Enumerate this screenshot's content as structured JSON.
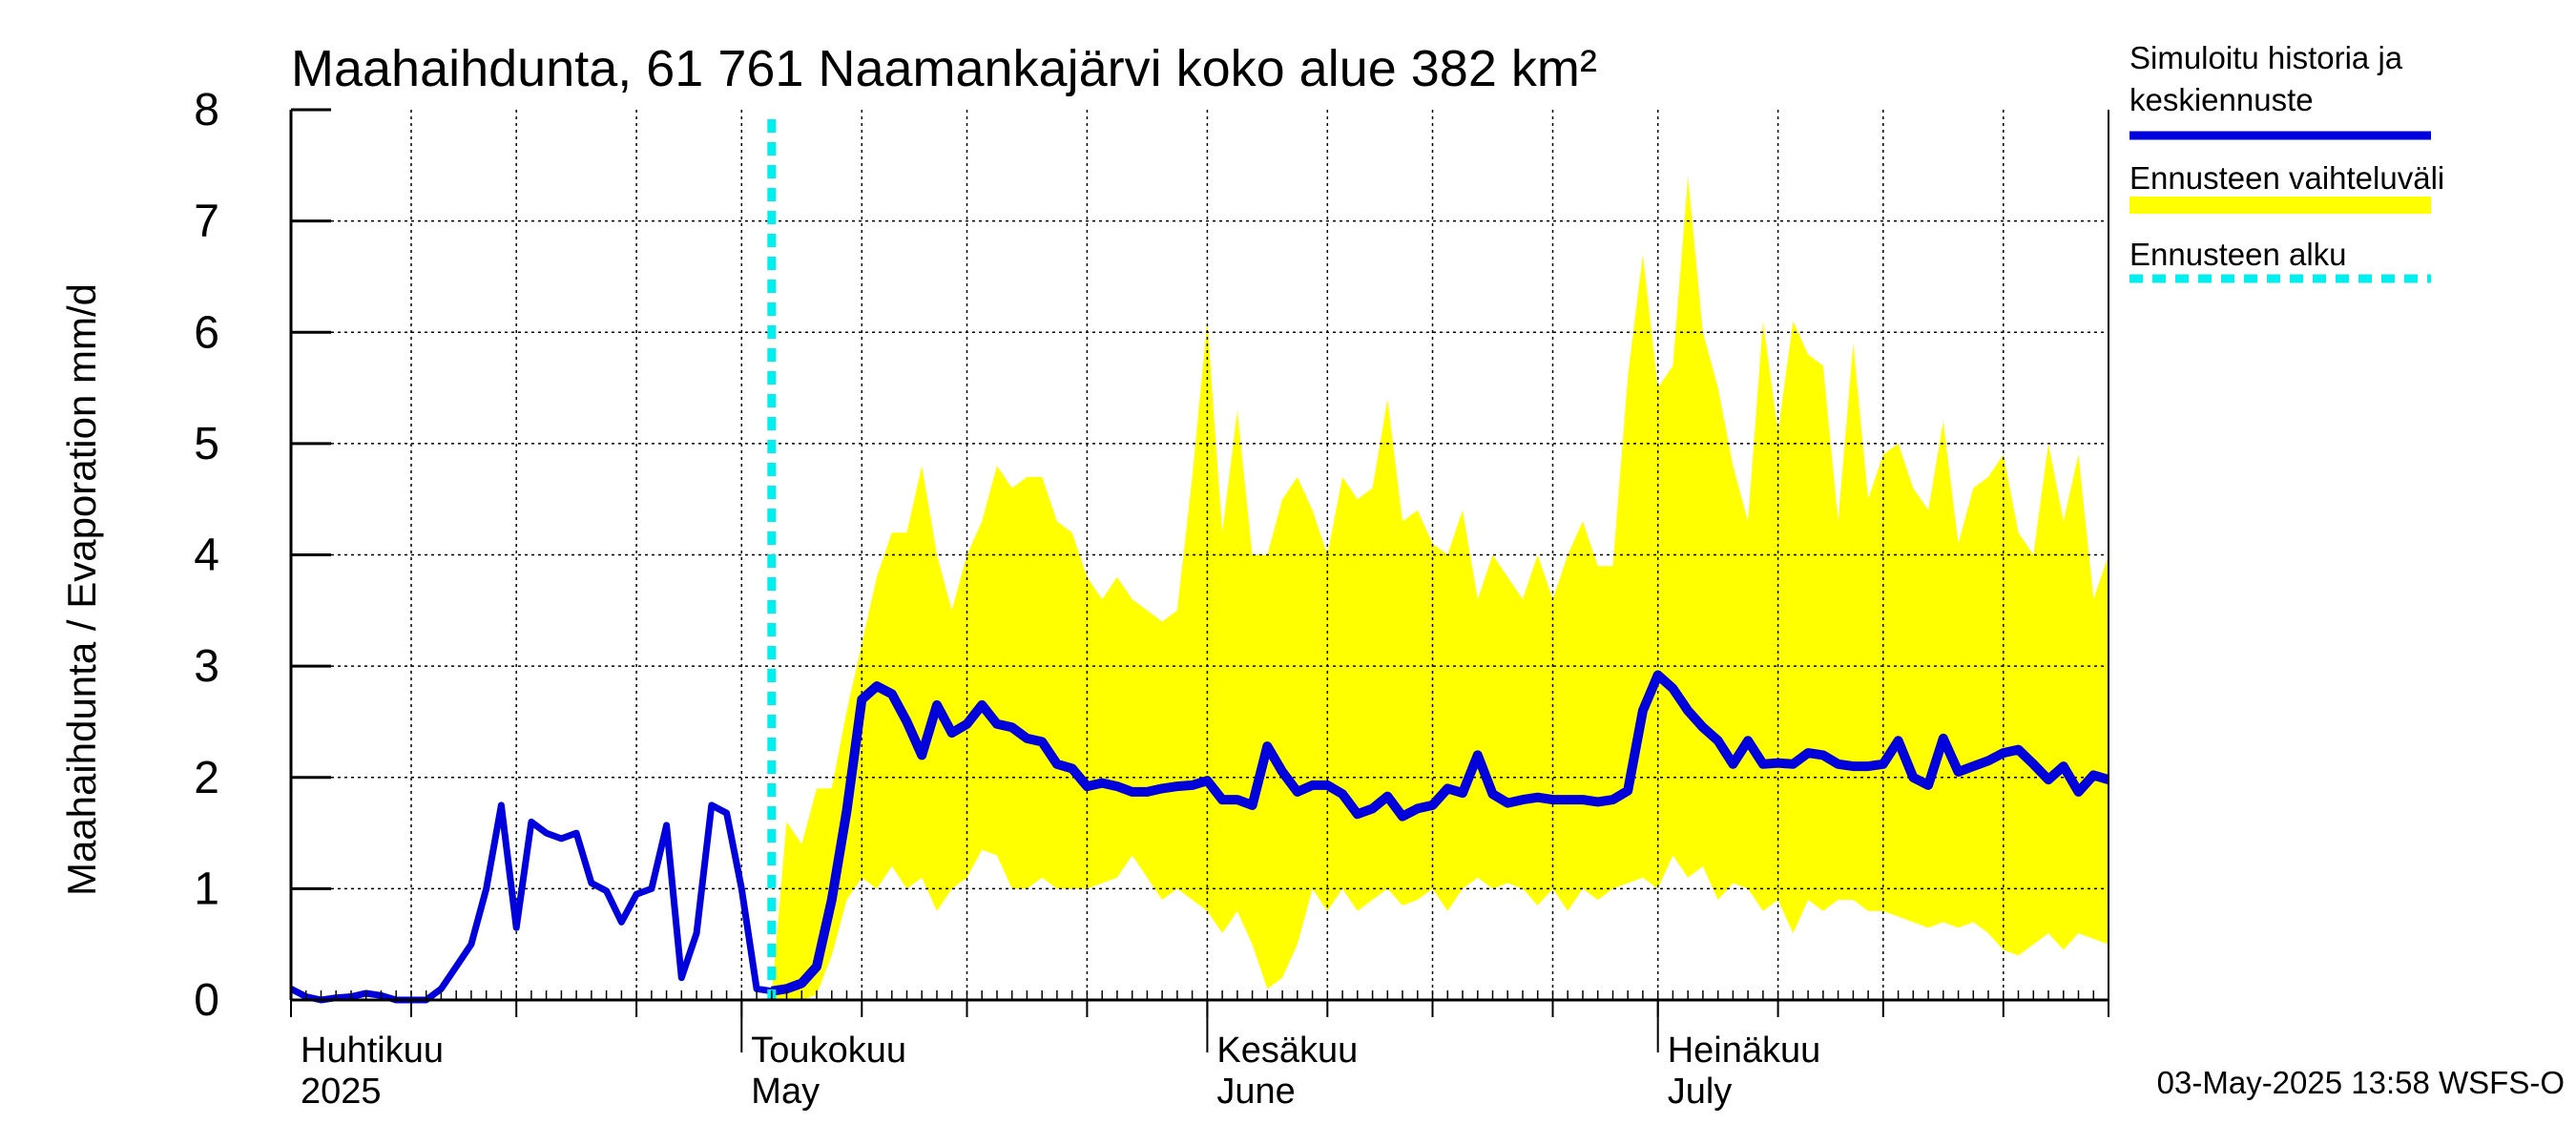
{
  "chart_data": {
    "type": "area",
    "title": "Maahaihdunta, 61 761 Naamankajärvi koko alue 382 km²",
    "ylabel": "Maahaihdunta / Evaporation   mm/d",
    "xlabel": "",
    "ylim": [
      0,
      8
    ],
    "yticks": [
      "0",
      "1",
      "2",
      "3",
      "4",
      "5",
      "6",
      "7",
      "8"
    ],
    "x_range": [
      "2025-04-01",
      "2025-07-31"
    ],
    "grid": true,
    "legend_position": "right",
    "month_labels": [
      {
        "date": "2025-04-01",
        "fi": "Huhtikuu",
        "en": "2025"
      },
      {
        "date": "2025-05-01",
        "fi": "Toukokuu",
        "en": "May"
      },
      {
        "date": "2025-06-01",
        "fi": "Kesäkuu",
        "en": "June"
      },
      {
        "date": "2025-07-01",
        "fi": "Heinäkuu",
        "en": "July"
      }
    ],
    "forecast_start": "2025-05-03",
    "history_series": {
      "name": "Simuloitu historia ja keskiennuste",
      "color": "#0000dd",
      "points": [
        [
          "2025-04-01",
          0.1
        ],
        [
          "2025-04-02",
          0.03
        ],
        [
          "2025-04-03",
          0.0
        ],
        [
          "2025-04-04",
          0.02
        ],
        [
          "2025-04-05",
          0.03
        ],
        [
          "2025-04-06",
          0.06
        ],
        [
          "2025-04-07",
          0.04
        ],
        [
          "2025-04-08",
          0.0
        ],
        [
          "2025-04-09",
          0.0
        ],
        [
          "2025-04-10",
          0.0
        ],
        [
          "2025-04-11",
          0.1
        ],
        [
          "2025-04-12",
          0.3
        ],
        [
          "2025-04-13",
          0.5
        ],
        [
          "2025-04-14",
          1.0
        ],
        [
          "2025-04-15",
          1.75
        ],
        [
          "2025-04-16",
          0.65
        ],
        [
          "2025-04-17",
          1.6
        ],
        [
          "2025-04-18",
          1.5
        ],
        [
          "2025-04-19",
          1.45
        ],
        [
          "2025-04-20",
          1.5
        ],
        [
          "2025-04-21",
          1.05
        ],
        [
          "2025-04-22",
          0.98
        ],
        [
          "2025-04-23",
          0.7
        ],
        [
          "2025-04-24",
          0.95
        ],
        [
          "2025-04-25",
          1.0
        ],
        [
          "2025-04-26",
          1.57
        ],
        [
          "2025-04-27",
          0.2
        ],
        [
          "2025-04-28",
          0.6
        ],
        [
          "2025-04-29",
          1.75
        ],
        [
          "2025-04-30",
          1.68
        ],
        [
          "2025-05-01",
          1.0
        ],
        [
          "2025-05-02",
          0.1
        ],
        [
          "2025-05-03",
          0.08
        ]
      ]
    },
    "forecast_series": {
      "name": "Simuloitu historia ja keskiennuste",
      "points": [
        [
          "2025-05-03",
          0.08
        ],
        [
          "2025-05-04",
          0.1
        ],
        [
          "2025-05-05",
          0.15
        ],
        [
          "2025-05-06",
          0.3
        ],
        [
          "2025-05-07",
          0.9
        ],
        [
          "2025-05-08",
          1.7
        ],
        [
          "2025-05-09",
          2.7
        ],
        [
          "2025-05-10",
          2.82
        ],
        [
          "2025-05-11",
          2.75
        ],
        [
          "2025-05-12",
          2.5
        ],
        [
          "2025-05-13",
          2.2
        ],
        [
          "2025-05-14",
          2.65
        ],
        [
          "2025-05-15",
          2.4
        ],
        [
          "2025-05-16",
          2.48
        ],
        [
          "2025-05-17",
          2.65
        ],
        [
          "2025-05-18",
          2.48
        ],
        [
          "2025-05-19",
          2.45
        ],
        [
          "2025-05-20",
          2.35
        ],
        [
          "2025-05-21",
          2.32
        ],
        [
          "2025-05-22",
          2.12
        ],
        [
          "2025-05-23",
          2.08
        ],
        [
          "2025-05-24",
          1.92
        ],
        [
          "2025-05-25",
          1.95
        ],
        [
          "2025-05-26",
          1.92
        ],
        [
          "2025-05-27",
          1.87
        ],
        [
          "2025-05-28",
          1.87
        ],
        [
          "2025-05-29",
          1.9
        ],
        [
          "2025-05-30",
          1.92
        ],
        [
          "2025-05-31",
          1.93
        ],
        [
          "2025-06-01",
          1.97
        ],
        [
          "2025-06-02",
          1.8
        ],
        [
          "2025-06-03",
          1.8
        ],
        [
          "2025-06-04",
          1.75
        ],
        [
          "2025-06-05",
          2.28
        ],
        [
          "2025-06-06",
          2.05
        ],
        [
          "2025-06-07",
          1.87
        ],
        [
          "2025-06-08",
          1.93
        ],
        [
          "2025-06-09",
          1.93
        ],
        [
          "2025-06-10",
          1.85
        ],
        [
          "2025-06-11",
          1.67
        ],
        [
          "2025-06-12",
          1.72
        ],
        [
          "2025-06-13",
          1.83
        ],
        [
          "2025-06-14",
          1.65
        ],
        [
          "2025-06-15",
          1.72
        ],
        [
          "2025-06-16",
          1.75
        ],
        [
          "2025-06-17",
          1.9
        ],
        [
          "2025-06-18",
          1.86
        ],
        [
          "2025-06-19",
          2.2
        ],
        [
          "2025-06-20",
          1.85
        ],
        [
          "2025-06-21",
          1.77
        ],
        [
          "2025-06-22",
          1.8
        ],
        [
          "2025-06-23",
          1.82
        ],
        [
          "2025-06-24",
          1.8
        ],
        [
          "2025-06-25",
          1.8
        ],
        [
          "2025-06-26",
          1.8
        ],
        [
          "2025-06-27",
          1.78
        ],
        [
          "2025-06-28",
          1.8
        ],
        [
          "2025-06-29",
          1.88
        ],
        [
          "2025-06-30",
          2.6
        ],
        [
          "2025-07-01",
          2.92
        ],
        [
          "2025-07-02",
          2.8
        ],
        [
          "2025-07-03",
          2.6
        ],
        [
          "2025-07-04",
          2.45
        ],
        [
          "2025-07-05",
          2.33
        ],
        [
          "2025-07-06",
          2.12
        ],
        [
          "2025-07-07",
          2.33
        ],
        [
          "2025-07-08",
          2.12
        ],
        [
          "2025-07-09",
          2.13
        ],
        [
          "2025-07-10",
          2.12
        ],
        [
          "2025-07-11",
          2.22
        ],
        [
          "2025-07-12",
          2.2
        ],
        [
          "2025-07-13",
          2.12
        ],
        [
          "2025-07-14",
          2.1
        ],
        [
          "2025-07-15",
          2.1
        ],
        [
          "2025-07-16",
          2.12
        ],
        [
          "2025-07-17",
          2.33
        ],
        [
          "2025-07-18",
          2.0
        ],
        [
          "2025-07-19",
          1.93
        ],
        [
          "2025-07-20",
          2.35
        ],
        [
          "2025-07-21",
          2.05
        ],
        [
          "2025-07-22",
          2.1
        ],
        [
          "2025-07-23",
          2.15
        ],
        [
          "2025-07-24",
          2.22
        ],
        [
          "2025-07-25",
          2.25
        ],
        [
          "2025-07-26",
          2.12
        ],
        [
          "2025-07-27",
          1.98
        ],
        [
          "2025-07-28",
          2.1
        ],
        [
          "2025-07-29",
          1.87
        ],
        [
          "2025-07-30",
          2.02
        ],
        [
          "2025-07-31",
          1.98
        ],
        [
          "2025-08-01",
          2.1
        ],
        [
          "2025-08-02",
          1.83
        ]
      ]
    },
    "range_series": {
      "name": "Ennusteen vaihteluväli",
      "color": "#ffff00",
      "points": [
        [
          "2025-05-03",
          0.0,
          0.05
        ],
        [
          "2025-05-04",
          0.0,
          1.6
        ],
        [
          "2025-05-05",
          0.0,
          1.4
        ],
        [
          "2025-05-06",
          0.05,
          1.9
        ],
        [
          "2025-05-07",
          0.4,
          1.9
        ],
        [
          "2025-05-08",
          0.9,
          2.6
        ],
        [
          "2025-05-09",
          1.1,
          3.2
        ],
        [
          "2025-05-10",
          1.0,
          3.8
        ],
        [
          "2025-05-11",
          1.2,
          4.2
        ],
        [
          "2025-05-12",
          1.0,
          4.2
        ],
        [
          "2025-05-13",
          1.1,
          4.8
        ],
        [
          "2025-05-14",
          0.8,
          4.0
        ],
        [
          "2025-05-15",
          1.0,
          3.5
        ],
        [
          "2025-05-16",
          1.1,
          4.0
        ],
        [
          "2025-05-17",
          1.35,
          4.3
        ],
        [
          "2025-05-18",
          1.3,
          4.8
        ],
        [
          "2025-05-19",
          1.0,
          4.6
        ],
        [
          "2025-05-20",
          1.0,
          4.7
        ],
        [
          "2025-05-21",
          1.1,
          4.7
        ],
        [
          "2025-05-22",
          1.0,
          4.3
        ],
        [
          "2025-05-23",
          1.0,
          4.2
        ],
        [
          "2025-05-24",
          1.0,
          3.8
        ],
        [
          "2025-05-25",
          1.05,
          3.6
        ],
        [
          "2025-05-26",
          1.1,
          3.8
        ],
        [
          "2025-05-27",
          1.3,
          3.6
        ],
        [
          "2025-05-28",
          1.1,
          3.5
        ],
        [
          "2025-05-29",
          0.9,
          3.4
        ],
        [
          "2025-05-30",
          1.0,
          3.5
        ],
        [
          "2025-05-31",
          0.9,
          4.7
        ],
        [
          "2025-06-01",
          0.8,
          6.1
        ],
        [
          "2025-06-02",
          0.6,
          4.2
        ],
        [
          "2025-06-03",
          0.8,
          5.3
        ],
        [
          "2025-06-04",
          0.5,
          4.0
        ],
        [
          "2025-06-05",
          0.1,
          4.0
        ],
        [
          "2025-06-06",
          0.2,
          4.5
        ],
        [
          "2025-06-07",
          0.5,
          4.7
        ],
        [
          "2025-06-08",
          1.0,
          4.4
        ],
        [
          "2025-06-09",
          0.8,
          4.0
        ],
        [
          "2025-06-10",
          1.0,
          4.7
        ],
        [
          "2025-06-11",
          0.8,
          4.5
        ],
        [
          "2025-06-12",
          0.9,
          4.6
        ],
        [
          "2025-06-13",
          1.0,
          5.4
        ],
        [
          "2025-06-14",
          0.85,
          4.3
        ],
        [
          "2025-06-15",
          0.9,
          4.4
        ],
        [
          "2025-06-16",
          1.0,
          4.1
        ],
        [
          "2025-06-17",
          0.8,
          4.0
        ],
        [
          "2025-06-18",
          1.0,
          4.4
        ],
        [
          "2025-06-19",
          1.1,
          3.6
        ],
        [
          "2025-06-20",
          1.0,
          4.0
        ],
        [
          "2025-06-21",
          1.05,
          3.8
        ],
        [
          "2025-06-22",
          1.0,
          3.6
        ],
        [
          "2025-06-23",
          0.85,
          4.0
        ],
        [
          "2025-06-24",
          1.0,
          3.6
        ],
        [
          "2025-06-25",
          0.8,
          4.0
        ],
        [
          "2025-06-26",
          1.0,
          4.3
        ],
        [
          "2025-06-27",
          0.9,
          3.9
        ],
        [
          "2025-06-28",
          1.0,
          3.9
        ],
        [
          "2025-06-29",
          1.05,
          5.6
        ],
        [
          "2025-06-30",
          1.1,
          6.7
        ],
        [
          "2025-07-01",
          1.0,
          5.5
        ],
        [
          "2025-07-02",
          1.3,
          5.7
        ],
        [
          "2025-07-03",
          1.1,
          7.4
        ],
        [
          "2025-07-04",
          1.2,
          6.0
        ],
        [
          "2025-07-05",
          0.9,
          5.5
        ],
        [
          "2025-07-06",
          1.05,
          4.8
        ],
        [
          "2025-07-07",
          1.0,
          4.3
        ],
        [
          "2025-07-08",
          0.8,
          6.1
        ],
        [
          "2025-07-09",
          0.9,
          5.1
        ],
        [
          "2025-07-10",
          0.6,
          6.1
        ],
        [
          "2025-07-11",
          0.9,
          5.8
        ],
        [
          "2025-07-12",
          0.8,
          5.7
        ],
        [
          "2025-07-13",
          0.9,
          4.3
        ],
        [
          "2025-07-14",
          0.9,
          5.9
        ],
        [
          "2025-07-15",
          0.8,
          4.5
        ],
        [
          "2025-07-16",
          0.8,
          4.9
        ],
        [
          "2025-07-17",
          0.75,
          5.0
        ],
        [
          "2025-07-18",
          0.7,
          4.6
        ],
        [
          "2025-07-19",
          0.65,
          4.4
        ],
        [
          "2025-07-20",
          0.7,
          5.2
        ],
        [
          "2025-07-21",
          0.65,
          4.1
        ],
        [
          "2025-07-22",
          0.7,
          4.6
        ],
        [
          "2025-07-23",
          0.6,
          4.7
        ],
        [
          "2025-07-24",
          0.45,
          4.9
        ],
        [
          "2025-07-25",
          0.4,
          4.2
        ],
        [
          "2025-07-26",
          0.5,
          4.0
        ],
        [
          "2025-07-27",
          0.6,
          5.0
        ],
        [
          "2025-07-28",
          0.45,
          4.3
        ],
        [
          "2025-07-29",
          0.6,
          4.9
        ],
        [
          "2025-07-30",
          0.55,
          3.6
        ],
        [
          "2025-07-31",
          0.5,
          4.0
        ],
        [
          "2025-08-01",
          0.6,
          4.3
        ],
        [
          "2025-08-02",
          0.55,
          4.3
        ]
      ]
    },
    "forecast_start_series": {
      "name": "Ennusteen alku",
      "color": "#00eeee"
    },
    "legend": [
      {
        "label_lines": [
          "Simuloitu historia ja",
          "keskiennuste"
        ],
        "color": "#0000dd",
        "style": "solid"
      },
      {
        "label_lines": [
          "Ennusteen vaihteluväli"
        ],
        "color": "#ffff00",
        "style": "solid"
      },
      {
        "label_lines": [
          "Ennusteen alku"
        ],
        "color": "#00eeee",
        "style": "dashed"
      }
    ],
    "timestamp": "03-May-2025 13:58 WSFS-O"
  }
}
